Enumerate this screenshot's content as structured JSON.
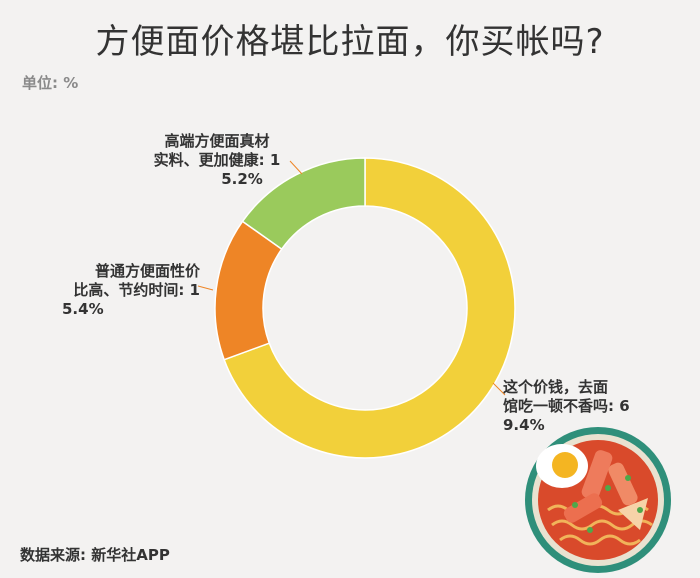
{
  "title": "方便面价格堪比拉面，你买帐吗?",
  "unit_label": "单位: %",
  "source_label": "数据来源: 新华社APP",
  "colors": {
    "background": "#f3f2f1",
    "slice_yellow": "#f2d03a",
    "slice_orange": "#ee8526",
    "slice_green": "#9aca5c"
  },
  "chart_data": {
    "type": "pie",
    "donut": true,
    "slices": [
      {
        "name": "这个价钱，去面馆吃一顿不香吗",
        "value": 69.4,
        "color": "#f2d03a",
        "label_lines": [
          "这个价钱，去面",
          "馆吃一顿不香吗: 6",
          "9.4%"
        ]
      },
      {
        "name": "普通方便面性价比高、节约时间",
        "value": 15.4,
        "color": "#ee8526",
        "label_lines": [
          "普通方便面性价",
          "比高、节约时间: 1",
          "5.4%"
        ]
      },
      {
        "name": "高端方便面真材实料、更加健康",
        "value": 15.2,
        "color": "#9aca5c",
        "label_lines": [
          "高端方便面真材",
          "实料、更加健康: 1",
          "5.2%"
        ]
      }
    ]
  }
}
